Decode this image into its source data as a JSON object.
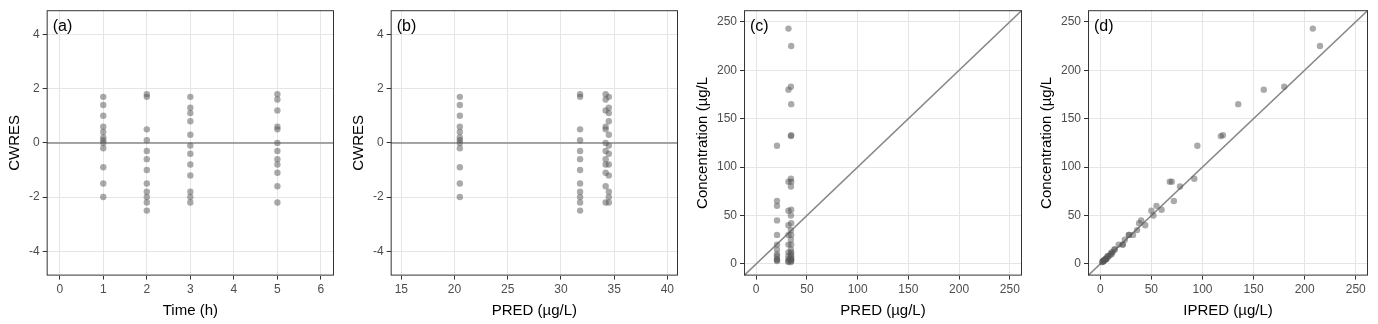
{
  "chart_data": [
    {
      "type": "scatter",
      "annotation": "(a)",
      "x_label": "Time (h)",
      "y_label": "CWRES",
      "xlim": [
        -0.3,
        6.3
      ],
      "xticks": [
        0,
        1,
        2,
        3,
        4,
        5,
        6
      ],
      "ylim": [
        -4.9,
        4.9
      ],
      "yticks": [
        -4,
        -2,
        0,
        2,
        4
      ],
      "grid": true,
      "series": [
        {
          "color": "#555555",
          "marker": "circle",
          "x": [
            1,
            1,
            1,
            1,
            1,
            1,
            1,
            1,
            1,
            1,
            1,
            1,
            2,
            2,
            2,
            2,
            2,
            2,
            2,
            2,
            2,
            2,
            2,
            2,
            3,
            3,
            3,
            3,
            3,
            3,
            3,
            3,
            3,
            3,
            3,
            3,
            5,
            5,
            5,
            5,
            5,
            5,
            5,
            5,
            5,
            5,
            5,
            5
          ],
          "values": [
            1.7,
            1.4,
            1.0,
            0.6,
            0.4,
            0.2,
            0.1,
            0,
            -0.2,
            -0.9,
            -1.5,
            -2.0,
            1.8,
            1.7,
            0.5,
            0.1,
            -0.3,
            -0.6,
            -1.0,
            -1.5,
            -1.8,
            -2.0,
            -2.2,
            -2.5,
            1.7,
            1.3,
            1.1,
            0.8,
            0.3,
            -0.1,
            -0.4,
            -0.8,
            -1.2,
            -1.8,
            -2.0,
            -2.2,
            1.8,
            1.6,
            1.2,
            0.6,
            0.5,
            0,
            -0.3,
            -0.6,
            -0.8,
            -1.1,
            -1.6,
            -2.2
          ]
        },
        {
          "type": "line",
          "color": "#888888",
          "x": [
            -0.3,
            6.3
          ],
          "values": [
            0,
            0
          ]
        }
      ]
    },
    {
      "type": "scatter",
      "annotation": "(b)",
      "x_label": "PRED (µg/L)",
      "y_label": "CWRES",
      "xlim": [
        14,
        41
      ],
      "xticks": [
        15,
        20,
        25,
        30,
        35,
        40
      ],
      "ylim": [
        -4.9,
        4.9
      ],
      "yticks": [
        -4,
        -2,
        0,
        2,
        4
      ],
      "grid": true,
      "series": [
        {
          "color": "#555555",
          "marker": "circle",
          "x": [
            20.5,
            20.5,
            20.5,
            20.5,
            20.5,
            20.5,
            20.5,
            20.5,
            20.5,
            20.5,
            20.5,
            20.5,
            31.8,
            31.8,
            31.8,
            31.8,
            31.8,
            31.8,
            31.8,
            31.8,
            31.8,
            31.8,
            31.8,
            31.8,
            34.5,
            34.5,
            34.5,
            34.5,
            34.5,
            34.5,
            34.5,
            34.5,
            34.5,
            34.5,
            34.5,
            34.5,
            34.2,
            34.2,
            34.2,
            34.2,
            34.2,
            34.2,
            34.2,
            34.2,
            34.2,
            34.2,
            34.2,
            34.2
          ],
          "values": [
            1.7,
            1.4,
            1.0,
            0.6,
            0.4,
            0.2,
            0.1,
            0,
            -0.2,
            -0.9,
            -1.5,
            -2.0,
            1.8,
            1.7,
            0.5,
            0.1,
            -0.3,
            -0.6,
            -1.0,
            -1.5,
            -1.8,
            -2.0,
            -2.2,
            -2.5,
            1.7,
            1.3,
            1.1,
            0.8,
            0.3,
            -0.1,
            -0.4,
            -0.8,
            -1.2,
            -1.8,
            -2.0,
            -2.2,
            1.8,
            1.6,
            1.2,
            0.6,
            0.5,
            0,
            -0.3,
            -0.6,
            -0.8,
            -1.1,
            -1.6,
            -2.2
          ]
        },
        {
          "type": "line",
          "color": "#888888",
          "x": [
            14,
            41
          ],
          "values": [
            0,
            0
          ]
        }
      ]
    },
    {
      "type": "scatter",
      "annotation": "(c)",
      "x_label": "PRED (µg/L)",
      "y_label": "Concentration (µg/L",
      "xlim": [
        -12,
        262
      ],
      "xticks": [
        0,
        50,
        100,
        150,
        200,
        250
      ],
      "ylim": [
        -12,
        262
      ],
      "yticks": [
        0,
        50,
        100,
        150,
        200,
        250
      ],
      "grid": true,
      "series": [
        {
          "color": "#555555",
          "marker": "circle",
          "x": [
            20.5,
            20.5,
            20.5,
            20.5,
            20.5,
            20.5,
            20.5,
            20.5,
            20.5,
            20.5,
            20.5,
            20.5,
            31.8,
            31.8,
            31.8,
            31.8,
            31.8,
            31.8,
            31.8,
            31.8,
            31.8,
            31.8,
            31.8,
            31.8,
            34.5,
            34.5,
            34.5,
            34.5,
            34.5,
            34.5,
            34.5,
            34.5,
            34.5,
            34.5,
            34.5,
            34.5,
            34.2,
            34.2,
            34.2,
            34.2,
            34.2,
            34.2,
            34.2,
            34.2,
            34.2,
            34.2,
            34.2,
            34.2
          ],
          "values": [
            122,
            65,
            60,
            45,
            30,
            20,
            15,
            10,
            8,
            5,
            4,
            3,
            243,
            180,
            85,
            55,
            40,
            30,
            20,
            12,
            8,
            5,
            3,
            2,
            225,
            165,
            133,
            85,
            56,
            42,
            30,
            20,
            12,
            8,
            5,
            3,
            183,
            132,
            88,
            80,
            50,
            35,
            25,
            15,
            10,
            6,
            4,
            2
          ]
        },
        {
          "type": "line",
          "color": "#888888",
          "x": [
            -12,
            262
          ],
          "values": [
            -12,
            262
          ]
        }
      ]
    },
    {
      "type": "scatter",
      "annotation": "(d)",
      "x_label": "IPRED (µg/L)",
      "y_label": "Concentration (µg/L",
      "xlim": [
        -12,
        262
      ],
      "xticks": [
        0,
        50,
        100,
        150,
        200,
        250
      ],
      "ylim": [
        -12,
        262
      ],
      "yticks": [
        0,
        50,
        100,
        150,
        200,
        250
      ],
      "grid": true,
      "series": [
        {
          "color": "#555555",
          "marker": "circle",
          "x": [
            95,
            72,
            55,
            40,
            32,
            22,
            14,
            11,
            8,
            6,
            4,
            3,
            208,
            160,
            68,
            50,
            44,
            28,
            22,
            11,
            8,
            5,
            3,
            2,
            215,
            135,
            120,
            70,
            60,
            38,
            28,
            18,
            12,
            7,
            5,
            3,
            180,
            118,
            92,
            78,
            52,
            36,
            24,
            14,
            10,
            6,
            4,
            2
          ],
          "values": [
            122,
            65,
            60,
            45,
            30,
            20,
            15,
            10,
            8,
            5,
            4,
            3,
            243,
            180,
            85,
            55,
            40,
            30,
            20,
            12,
            8,
            5,
            3,
            2,
            225,
            165,
            133,
            85,
            56,
            42,
            30,
            20,
            12,
            8,
            5,
            3,
            183,
            132,
            88,
            80,
            50,
            35,
            25,
            15,
            10,
            6,
            4,
            2
          ]
        },
        {
          "type": "line",
          "color": "#888888",
          "x": [
            -12,
            262
          ],
          "values": [
            -12,
            262
          ]
        }
      ]
    }
  ]
}
